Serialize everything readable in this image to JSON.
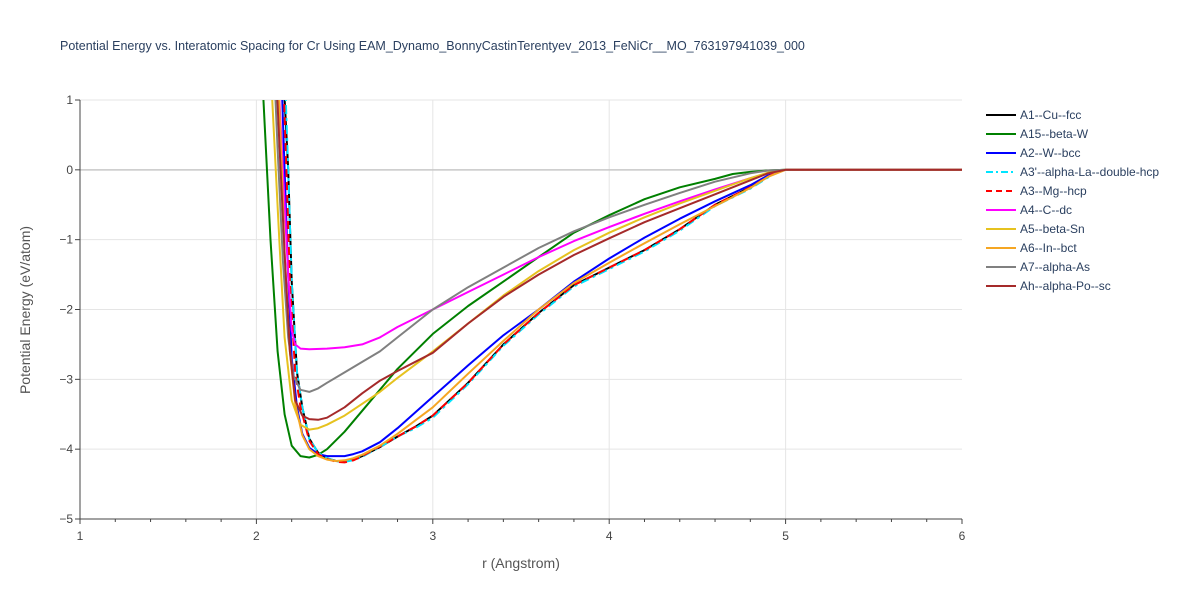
{
  "chart_data": {
    "type": "line",
    "title": "Potential Energy vs. Interatomic Spacing for Cr Using EAM_Dynamo_BonnyCastinTerentyev_2013_FeNiCr__MO_763197941039_000",
    "xlabel": "r (Angstrom)",
    "ylabel": "Potential Energy (eV/atom)",
    "xlim": [
      1,
      6
    ],
    "ylim": [
      -5,
      1
    ],
    "x_ticks": [
      "1",
      "2",
      "3",
      "4",
      "5",
      "6"
    ],
    "y_ticks": [
      "1",
      "0",
      "−1",
      "−2",
      "−3",
      "−4",
      "−5"
    ],
    "grid": true,
    "legend_position": "right",
    "series": [
      {
        "name": "A1--Cu--fcc",
        "color": "#000000",
        "dash": "solid",
        "x": [
          2.15,
          2.18,
          2.2,
          2.23,
          2.26,
          2.3,
          2.35,
          2.4,
          2.45,
          2.5,
          2.55,
          2.6,
          2.7,
          2.8,
          2.9,
          3.0,
          3.2,
          3.4,
          3.6,
          3.8,
          4.0,
          4.2,
          4.4,
          4.6,
          4.8,
          4.9,
          4.95,
          5.0,
          5.5,
          6.0
        ],
        "y": [
          1.5,
          0.0,
          -1.6,
          -2.9,
          -3.4,
          -3.85,
          -4.05,
          -4.13,
          -4.17,
          -4.18,
          -4.15,
          -4.1,
          -3.97,
          -3.82,
          -3.68,
          -3.52,
          -3.05,
          -2.5,
          -2.05,
          -1.65,
          -1.4,
          -1.15,
          -0.85,
          -0.5,
          -0.25,
          -0.1,
          -0.03,
          0.0,
          0.0,
          0.0
        ]
      },
      {
        "name": "A15--beta-W",
        "color": "#008000",
        "dash": "solid",
        "x": [
          2.03,
          2.05,
          2.08,
          2.12,
          2.16,
          2.2,
          2.25,
          2.3,
          2.35,
          2.4,
          2.5,
          2.6,
          2.7,
          2.8,
          3.0,
          3.2,
          3.4,
          3.6,
          3.8,
          4.0,
          4.2,
          4.4,
          4.6,
          4.7,
          4.8,
          4.9,
          5.0,
          5.5,
          6.0
        ],
        "y": [
          1.5,
          0.5,
          -1.0,
          -2.6,
          -3.5,
          -3.95,
          -4.1,
          -4.12,
          -4.08,
          -4.0,
          -3.75,
          -3.45,
          -3.15,
          -2.85,
          -2.35,
          -1.95,
          -1.6,
          -1.25,
          -0.9,
          -0.65,
          -0.42,
          -0.25,
          -0.13,
          -0.06,
          -0.03,
          -0.01,
          0.0,
          0.0,
          0.0
        ]
      },
      {
        "name": "A2--W--bcc",
        "color": "#0000ff",
        "dash": "solid",
        "x": [
          2.14,
          2.16,
          2.18,
          2.2,
          2.23,
          2.26,
          2.3,
          2.35,
          2.4,
          2.5,
          2.55,
          2.6,
          2.7,
          2.8,
          3.0,
          3.2,
          3.4,
          3.6,
          3.8,
          4.0,
          4.2,
          4.4,
          4.6,
          4.8,
          4.9,
          4.95,
          5.0,
          5.5,
          6.0
        ],
        "y": [
          1.5,
          0.0,
          -1.5,
          -2.7,
          -3.4,
          -3.78,
          -3.98,
          -4.07,
          -4.1,
          -4.1,
          -4.07,
          -4.03,
          -3.9,
          -3.7,
          -3.25,
          -2.8,
          -2.37,
          -2.0,
          -1.6,
          -1.27,
          -0.97,
          -0.7,
          -0.45,
          -0.22,
          -0.08,
          -0.03,
          0.0,
          0.0,
          0.0
        ]
      },
      {
        "name": "A3'--alpha-La--double-hcp",
        "color": "#00e5ff",
        "dash": "dashdot",
        "x": [
          2.16,
          2.18,
          2.2,
          2.23,
          2.26,
          2.3,
          2.35,
          2.4,
          2.45,
          2.5,
          2.55,
          2.6,
          2.7,
          2.8,
          2.9,
          3.0,
          3.2,
          3.4,
          3.6,
          3.8,
          4.0,
          4.2,
          4.4,
          4.6,
          4.8,
          4.9,
          4.95,
          5.0,
          5.5,
          6.0
        ],
        "y": [
          1.5,
          0.0,
          -1.6,
          -2.9,
          -3.4,
          -3.85,
          -4.05,
          -4.13,
          -4.17,
          -4.18,
          -4.16,
          -4.11,
          -3.97,
          -3.82,
          -3.7,
          -3.55,
          -3.07,
          -2.52,
          -2.07,
          -1.67,
          -1.42,
          -1.17,
          -0.87,
          -0.52,
          -0.27,
          -0.11,
          -0.04,
          0.0,
          0.0,
          0.0
        ]
      },
      {
        "name": "A3--Mg--hcp",
        "color": "#ff0000",
        "dash": "dash",
        "x": [
          2.15,
          2.17,
          2.19,
          2.22,
          2.25,
          2.3,
          2.35,
          2.4,
          2.45,
          2.5,
          2.55,
          2.6,
          2.7,
          2.8,
          2.9,
          3.0,
          3.2,
          3.4,
          3.6,
          3.8,
          4.0,
          4.2,
          4.4,
          4.6,
          4.8,
          4.9,
          4.95,
          5.0,
          5.5,
          6.0
        ],
        "y": [
          1.5,
          0.0,
          -1.6,
          -2.9,
          -3.4,
          -3.88,
          -4.07,
          -4.14,
          -4.18,
          -4.19,
          -4.16,
          -4.1,
          -3.96,
          -3.82,
          -3.68,
          -3.52,
          -3.05,
          -2.5,
          -2.05,
          -1.65,
          -1.4,
          -1.15,
          -0.85,
          -0.5,
          -0.25,
          -0.1,
          -0.03,
          0.0,
          0.0,
          0.0
        ]
      },
      {
        "name": "A4--C--dc",
        "color": "#ff00ff",
        "dash": "solid",
        "x": [
          2.12,
          2.15,
          2.18,
          2.2,
          2.22,
          2.25,
          2.3,
          2.4,
          2.5,
          2.6,
          2.7,
          2.8,
          3.0,
          3.2,
          3.4,
          3.6,
          3.8,
          4.0,
          4.2,
          4.4,
          4.6,
          4.8,
          4.9,
          5.0,
          5.5,
          6.0
        ],
        "y": [
          1.5,
          0.0,
          -1.5,
          -2.3,
          -2.5,
          -2.56,
          -2.57,
          -2.56,
          -2.54,
          -2.5,
          -2.4,
          -2.25,
          -2.0,
          -1.75,
          -1.5,
          -1.25,
          -1.02,
          -0.82,
          -0.63,
          -0.45,
          -0.28,
          -0.12,
          -0.05,
          0.0,
          0.0,
          0.0
        ]
      },
      {
        "name": "A5--beta-Sn",
        "color": "#e6c21f",
        "dash": "solid",
        "x": [
          2.08,
          2.1,
          2.13,
          2.16,
          2.2,
          2.25,
          2.3,
          2.35,
          2.4,
          2.5,
          2.6,
          2.7,
          2.8,
          3.0,
          3.2,
          3.4,
          3.6,
          3.8,
          4.0,
          4.2,
          4.4,
          4.6,
          4.8,
          4.9,
          5.0,
          5.5,
          6.0
        ],
        "y": [
          1.5,
          0.5,
          -1.0,
          -2.4,
          -3.3,
          -3.65,
          -3.72,
          -3.7,
          -3.65,
          -3.52,
          -3.35,
          -3.18,
          -2.98,
          -2.6,
          -2.2,
          -1.8,
          -1.45,
          -1.15,
          -0.9,
          -0.68,
          -0.48,
          -0.3,
          -0.12,
          -0.04,
          0.0,
          0.0,
          0.0
        ]
      },
      {
        "name": "A6--In--bct",
        "color": "#f5a623",
        "dash": "solid",
        "x": [
          2.12,
          2.14,
          2.16,
          2.19,
          2.22,
          2.26,
          2.3,
          2.35,
          2.4,
          2.45,
          2.5,
          2.55,
          2.6,
          2.7,
          2.8,
          3.0,
          3.2,
          3.4,
          3.6,
          3.8,
          4.0,
          4.2,
          4.4,
          4.6,
          4.8,
          4.9,
          5.0,
          5.5,
          6.0
        ],
        "y": [
          1.5,
          0.3,
          -1.2,
          -2.6,
          -3.35,
          -3.8,
          -4.0,
          -4.1,
          -4.15,
          -4.17,
          -4.16,
          -4.13,
          -4.08,
          -3.95,
          -3.78,
          -3.4,
          -2.92,
          -2.45,
          -2.0,
          -1.62,
          -1.33,
          -1.05,
          -0.78,
          -0.52,
          -0.26,
          -0.1,
          0.0,
          0.0,
          0.0
        ]
      },
      {
        "name": "A7--alpha-As",
        "color": "#808080",
        "dash": "solid",
        "x": [
          2.1,
          2.12,
          2.15,
          2.18,
          2.21,
          2.25,
          2.3,
          2.35,
          2.4,
          2.5,
          2.6,
          2.7,
          2.8,
          3.0,
          3.2,
          3.4,
          3.6,
          3.8,
          4.0,
          4.2,
          4.4,
          4.6,
          4.8,
          4.9,
          5.0,
          5.5,
          6.0
        ],
        "y": [
          1.5,
          0.3,
          -1.3,
          -2.4,
          -2.95,
          -3.15,
          -3.18,
          -3.13,
          -3.05,
          -2.9,
          -2.75,
          -2.6,
          -2.4,
          -2.0,
          -1.68,
          -1.4,
          -1.12,
          -0.88,
          -0.68,
          -0.5,
          -0.33,
          -0.17,
          -0.05,
          -0.01,
          0.0,
          0.0,
          0.0
        ]
      },
      {
        "name": "Ah--alpha-Po--sc",
        "color": "#a52a2a",
        "dash": "solid",
        "x": [
          2.11,
          2.13,
          2.16,
          2.19,
          2.22,
          2.26,
          2.3,
          2.35,
          2.4,
          2.5,
          2.6,
          2.7,
          2.8,
          3.0,
          3.2,
          3.4,
          3.6,
          3.8,
          4.0,
          4.2,
          4.4,
          4.6,
          4.8,
          4.9,
          5.0,
          5.5,
          6.0
        ],
        "y": [
          1.5,
          0.4,
          -1.2,
          -2.6,
          -3.3,
          -3.52,
          -3.57,
          -3.58,
          -3.55,
          -3.4,
          -3.2,
          -3.02,
          -2.88,
          -2.62,
          -2.2,
          -1.82,
          -1.5,
          -1.22,
          -0.98,
          -0.75,
          -0.55,
          -0.35,
          -0.15,
          -0.05,
          0.0,
          0.0,
          0.0
        ]
      }
    ]
  }
}
